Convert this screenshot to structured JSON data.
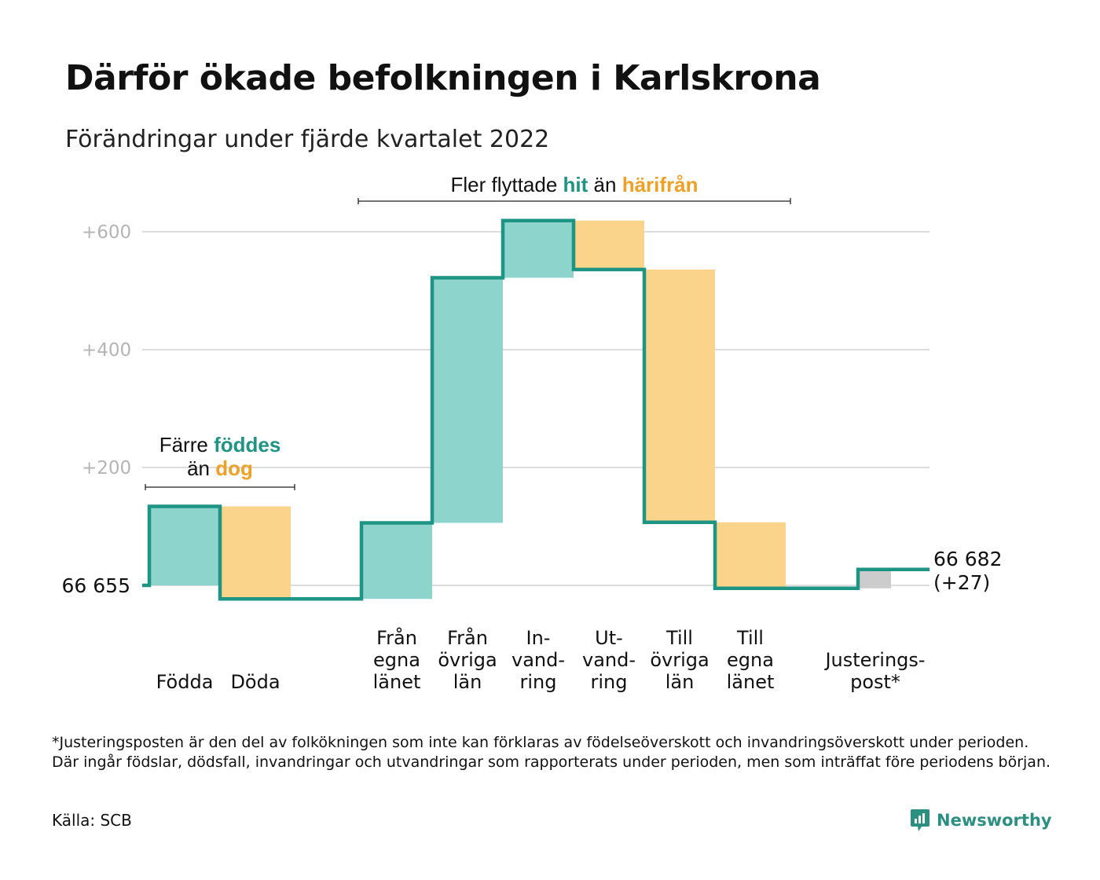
{
  "title": "Därför ökade befolkningen i Karlskrona",
  "subtitle": "Förändringar under fjärde kvartalet 2022",
  "annotations": {
    "births": {
      "prefix": "Färre",
      "teal_word": "föddes",
      "line2_prefix": "än",
      "orange_word": "dog"
    },
    "migration": {
      "prefix": "Fler flyttade",
      "teal_word": "hit",
      "middle": "än",
      "orange_word": "härifrån"
    }
  },
  "start_label": "66 655",
  "end_label": {
    "value": "66 682",
    "change": "(+27)"
  },
  "chart_data": {
    "type": "waterfall",
    "title": "Därför ökade befolkningen i Karlskrona",
    "subtitle": "Förändringar under fjärde kvartalet 2022",
    "start_value": 66655,
    "end_value": 66682,
    "net_change": 27,
    "ylim": [
      -40,
      650
    ],
    "yticks": [
      200,
      400,
      600
    ],
    "ytick_labels": [
      "+200",
      "+400",
      "+600"
    ],
    "grid": true,
    "steps": [
      {
        "category": "Födda",
        "label_lines": [
          "Födda"
        ],
        "delta": 134,
        "kind": "in"
      },
      {
        "category": "Döda",
        "label_lines": [
          "Döda"
        ],
        "delta": -157,
        "kind": "out"
      },
      {
        "category": "Från egna länet",
        "label_lines": [
          "Från",
          "egna",
          "länet"
        ],
        "delta": 129,
        "kind": "in"
      },
      {
        "category": "Från övriga län",
        "label_lines": [
          "Från",
          "övriga",
          "län"
        ],
        "delta": 416,
        "kind": "in"
      },
      {
        "category": "Invandring",
        "label_lines": [
          "In-",
          "vand-",
          "ring"
        ],
        "delta": 97,
        "kind": "in"
      },
      {
        "category": "Utvandring",
        "label_lines": [
          "Ut-",
          "vand-",
          "ring"
        ],
        "delta": -83,
        "kind": "out"
      },
      {
        "category": "Till övriga län",
        "label_lines": [
          "Till",
          "övriga",
          "län"
        ],
        "delta": -429,
        "kind": "out"
      },
      {
        "category": "Till egna länet",
        "label_lines": [
          "Till",
          "egna",
          "länet"
        ],
        "delta": -112,
        "kind": "out"
      },
      {
        "category": "Justeringspost*",
        "label_lines": [
          "Justerings-",
          "post*"
        ],
        "delta": 32,
        "kind": "adjust"
      }
    ],
    "colors": {
      "in": "#8dd5cc",
      "out": "#f9d48a",
      "adjust": "#cccccc",
      "line": "#1e9484",
      "grid": "#dddddd",
      "tick": "#b5b5b5"
    }
  },
  "footnote": "*Justeringsposten är den del av folkökningen som inte kan förklaras av födelseöverskott och invandringsöverskott under perioden. Där ingår födslar, dödsfall, invandringar och utvandringar som rapporterats under perioden, men som inträffat före periodens början.",
  "source": "Källa: SCB",
  "brand": {
    "name": "Newsworthy",
    "icon": "newsworthy-logo-icon",
    "color": "#2b9081"
  }
}
